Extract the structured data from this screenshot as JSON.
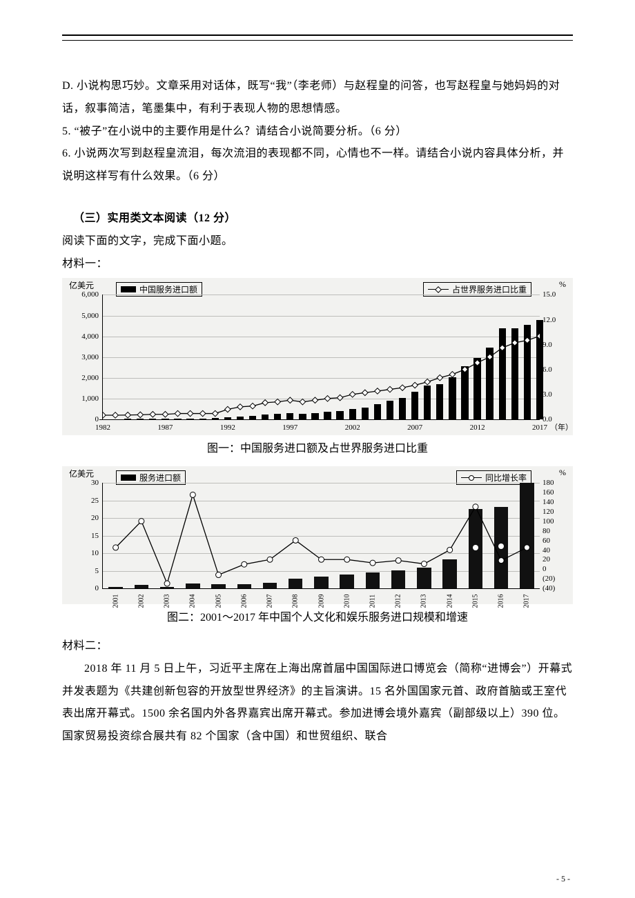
{
  "text": {
    "para_d": "D. 小说构思巧妙。文章采用对话体，既写“我”（李老师）与赵程皇的问答，也写赵程皇与她妈妈的对话，叙事简洁，笔墨集中，有利于表现人物的思想情感。",
    "para_5": "5. “被子”在小说中的主要作用是什么？请结合小说简要分析。（6 分）",
    "para_6": "6. 小说两次写到赵程皇流泪，每次流泪的表现都不同，心情也不一样。请结合小说内容具体分析，并说明这样写有什么效果。（6 分）",
    "section3": "（三）实用类文本阅读（12 分）",
    "lead": "阅读下面的文字，完成下面小题。",
    "m1": "材料一：",
    "caption1": "图一：中国服务进口额及占世界服务进口比重",
    "caption2": "图二：2001～2017 年中国个人文化和娱乐服务进口规模和增速",
    "m2": "材料二：",
    "body1": "2018 年 11 月 5 日上午，习近平主席在上海出席首届中国国际进口博览会（简称“进博会”）开幕式并发表题为《共建创新包容的开放型世界经济》的主旨演讲。15 名外国国家元首、政府首脑或王室代表出席开幕式。1500 余名国内外各界嘉宾出席开幕式。参加进博会境外嘉宾（副部级以上）390 位。国家贸易投资综合展共有 82 个国家（含中国）和世贸组织、联合",
    "page_num": "- 5 -"
  },
  "chart1": {
    "type": "bar+line",
    "background_color": "#f2f2f0",
    "bar_color": "#000000",
    "line_color": "#000000",
    "grid_color": "#bdbdba",
    "legend_bar": "中国服务进口额",
    "legend_line": "占世界服务进口比重",
    "y_left_unit": "亿美元",
    "y_right_unit": "%",
    "x_unit": "（年）",
    "y_left_max": 6000,
    "y_left_ticks": [
      "0",
      "1,000",
      "2,000",
      "3,000",
      "4,000",
      "5,000",
      "6,000"
    ],
    "y_right_max": 15.0,
    "y_right_ticks": [
      "0.0",
      "3.0",
      "6.0",
      "9.0",
      "12.0",
      "15.0"
    ],
    "x_from": 1982,
    "x_to": 2017,
    "x_tick_step": 5,
    "x_ticks": [
      "1982",
      "1987",
      "1992",
      "1997",
      "2002",
      "2007",
      "2012",
      "2017"
    ],
    "bars": [
      {
        "year": 1982,
        "v": 20
      },
      {
        "year": 1983,
        "v": 25
      },
      {
        "year": 1984,
        "v": 30
      },
      {
        "year": 1985,
        "v": 35
      },
      {
        "year": 1986,
        "v": 40
      },
      {
        "year": 1987,
        "v": 45
      },
      {
        "year": 1988,
        "v": 50
      },
      {
        "year": 1989,
        "v": 55
      },
      {
        "year": 1990,
        "v": 60
      },
      {
        "year": 1991,
        "v": 70
      },
      {
        "year": 1992,
        "v": 120
      },
      {
        "year": 1993,
        "v": 150
      },
      {
        "year": 1994,
        "v": 180
      },
      {
        "year": 1995,
        "v": 260
      },
      {
        "year": 1996,
        "v": 280
      },
      {
        "year": 1997,
        "v": 300
      },
      {
        "year": 1998,
        "v": 290
      },
      {
        "year": 1999,
        "v": 320
      },
      {
        "year": 2000,
        "v": 380
      },
      {
        "year": 2001,
        "v": 420
      },
      {
        "year": 2002,
        "v": 500
      },
      {
        "year": 2003,
        "v": 580
      },
      {
        "year": 2004,
        "v": 750
      },
      {
        "year": 2005,
        "v": 900
      },
      {
        "year": 2006,
        "v": 1050
      },
      {
        "year": 2007,
        "v": 1350
      },
      {
        "year": 2008,
        "v": 1650
      },
      {
        "year": 2009,
        "v": 1700
      },
      {
        "year": 2010,
        "v": 2050
      },
      {
        "year": 2011,
        "v": 2550
      },
      {
        "year": 2012,
        "v": 2950
      },
      {
        "year": 2013,
        "v": 3450
      },
      {
        "year": 2014,
        "v": 4400
      },
      {
        "year": 2015,
        "v": 4400
      },
      {
        "year": 2016,
        "v": 4550
      },
      {
        "year": 2017,
        "v": 4800
      }
    ],
    "line": [
      {
        "year": 1982,
        "v": 0.5
      },
      {
        "year": 1983,
        "v": 0.5
      },
      {
        "year": 1984,
        "v": 0.52
      },
      {
        "year": 1985,
        "v": 0.55
      },
      {
        "year": 1986,
        "v": 0.6
      },
      {
        "year": 1987,
        "v": 0.6
      },
      {
        "year": 1988,
        "v": 0.7
      },
      {
        "year": 1989,
        "v": 0.7
      },
      {
        "year": 1990,
        "v": 0.7
      },
      {
        "year": 1991,
        "v": 0.7
      },
      {
        "year": 1992,
        "v": 1.2
      },
      {
        "year": 1993,
        "v": 1.5
      },
      {
        "year": 1994,
        "v": 1.6
      },
      {
        "year": 1995,
        "v": 2.0
      },
      {
        "year": 1996,
        "v": 2.1
      },
      {
        "year": 1997,
        "v": 2.3
      },
      {
        "year": 1998,
        "v": 2.1
      },
      {
        "year": 1999,
        "v": 2.3
      },
      {
        "year": 2000,
        "v": 2.5
      },
      {
        "year": 2001,
        "v": 2.6
      },
      {
        "year": 2002,
        "v": 3.0
      },
      {
        "year": 2003,
        "v": 3.2
      },
      {
        "year": 2004,
        "v": 3.4
      },
      {
        "year": 2005,
        "v": 3.6
      },
      {
        "year": 2006,
        "v": 3.8
      },
      {
        "year": 2007,
        "v": 4.1
      },
      {
        "year": 2008,
        "v": 4.5
      },
      {
        "year": 2009,
        "v": 5.0
      },
      {
        "year": 2010,
        "v": 5.4
      },
      {
        "year": 2011,
        "v": 6.0
      },
      {
        "year": 2012,
        "v": 6.8
      },
      {
        "year": 2013,
        "v": 7.5
      },
      {
        "year": 2014,
        "v": 8.6
      },
      {
        "year": 2015,
        "v": 9.2
      },
      {
        "year": 2016,
        "v": 9.5
      },
      {
        "year": 2017,
        "v": 10.0
      }
    ]
  },
  "chart2": {
    "type": "bar+line",
    "background_color": "#f2f2f0",
    "bar_color": "#111111",
    "line_color": "#000000",
    "grid_color": "#bdbdba",
    "legend_bar": "服务进口额",
    "legend_line": "同比增长率",
    "y_left_unit": "亿美元",
    "y_right_unit": "%",
    "y_left_max": 30,
    "y_left_ticks": [
      "0",
      "5",
      "10",
      "15",
      "20",
      "25",
      "30"
    ],
    "y_right_min": -40,
    "y_right_max": 180,
    "y_right_ticks": [
      "(40)",
      "(20)",
      "0",
      "20",
      "40",
      "60",
      "80",
      "100",
      "120",
      "140",
      "160",
      "180"
    ],
    "x_years": [
      2001,
      2002,
      2003,
      2004,
      2005,
      2006,
      2007,
      2008,
      2009,
      2010,
      2011,
      2012,
      2013,
      2014,
      2015,
      2016,
      2017
    ],
    "bars": [
      {
        "year": 2001,
        "v": 0.5
      },
      {
        "year": 2002,
        "v": 1.0
      },
      {
        "year": 2003,
        "v": 0.5
      },
      {
        "year": 2004,
        "v": 1.4
      },
      {
        "year": 2005,
        "v": 1.2
      },
      {
        "year": 2006,
        "v": 1.3
      },
      {
        "year": 2007,
        "v": 1.7
      },
      {
        "year": 2008,
        "v": 2.8
      },
      {
        "year": 2009,
        "v": 3.3
      },
      {
        "year": 2010,
        "v": 3.9
      },
      {
        "year": 2011,
        "v": 4.5
      },
      {
        "year": 2012,
        "v": 5.2
      },
      {
        "year": 2013,
        "v": 5.9
      },
      {
        "year": 2014,
        "v": 8.2
      },
      {
        "year": 2015,
        "v": 22.5
      },
      {
        "year": 2016,
        "v": 23.2
      },
      {
        "year": 2017,
        "v": 30.0
      }
    ],
    "line": [
      {
        "year": 2001,
        "v": 45
      },
      {
        "year": 2002,
        "v": 100
      },
      {
        "year": 2003,
        "v": -30
      },
      {
        "year": 2004,
        "v": 155
      },
      {
        "year": 2005,
        "v": -12
      },
      {
        "year": 2006,
        "v": 10
      },
      {
        "year": 2007,
        "v": 20
      },
      {
        "year": 2008,
        "v": 60
      },
      {
        "year": 2009,
        "v": 20
      },
      {
        "year": 2010,
        "v": 20
      },
      {
        "year": 2011,
        "v": 13
      },
      {
        "year": 2012,
        "v": 18
      },
      {
        "year": 2013,
        "v": 11
      },
      {
        "year": 2014,
        "v": 40
      },
      {
        "year": 2015,
        "v": 130
      },
      {
        "year": 2016,
        "v": 18
      },
      {
        "year": 2017,
        "v": 45
      }
    ],
    "white_dots_years": [
      2015,
      2016
    ]
  }
}
